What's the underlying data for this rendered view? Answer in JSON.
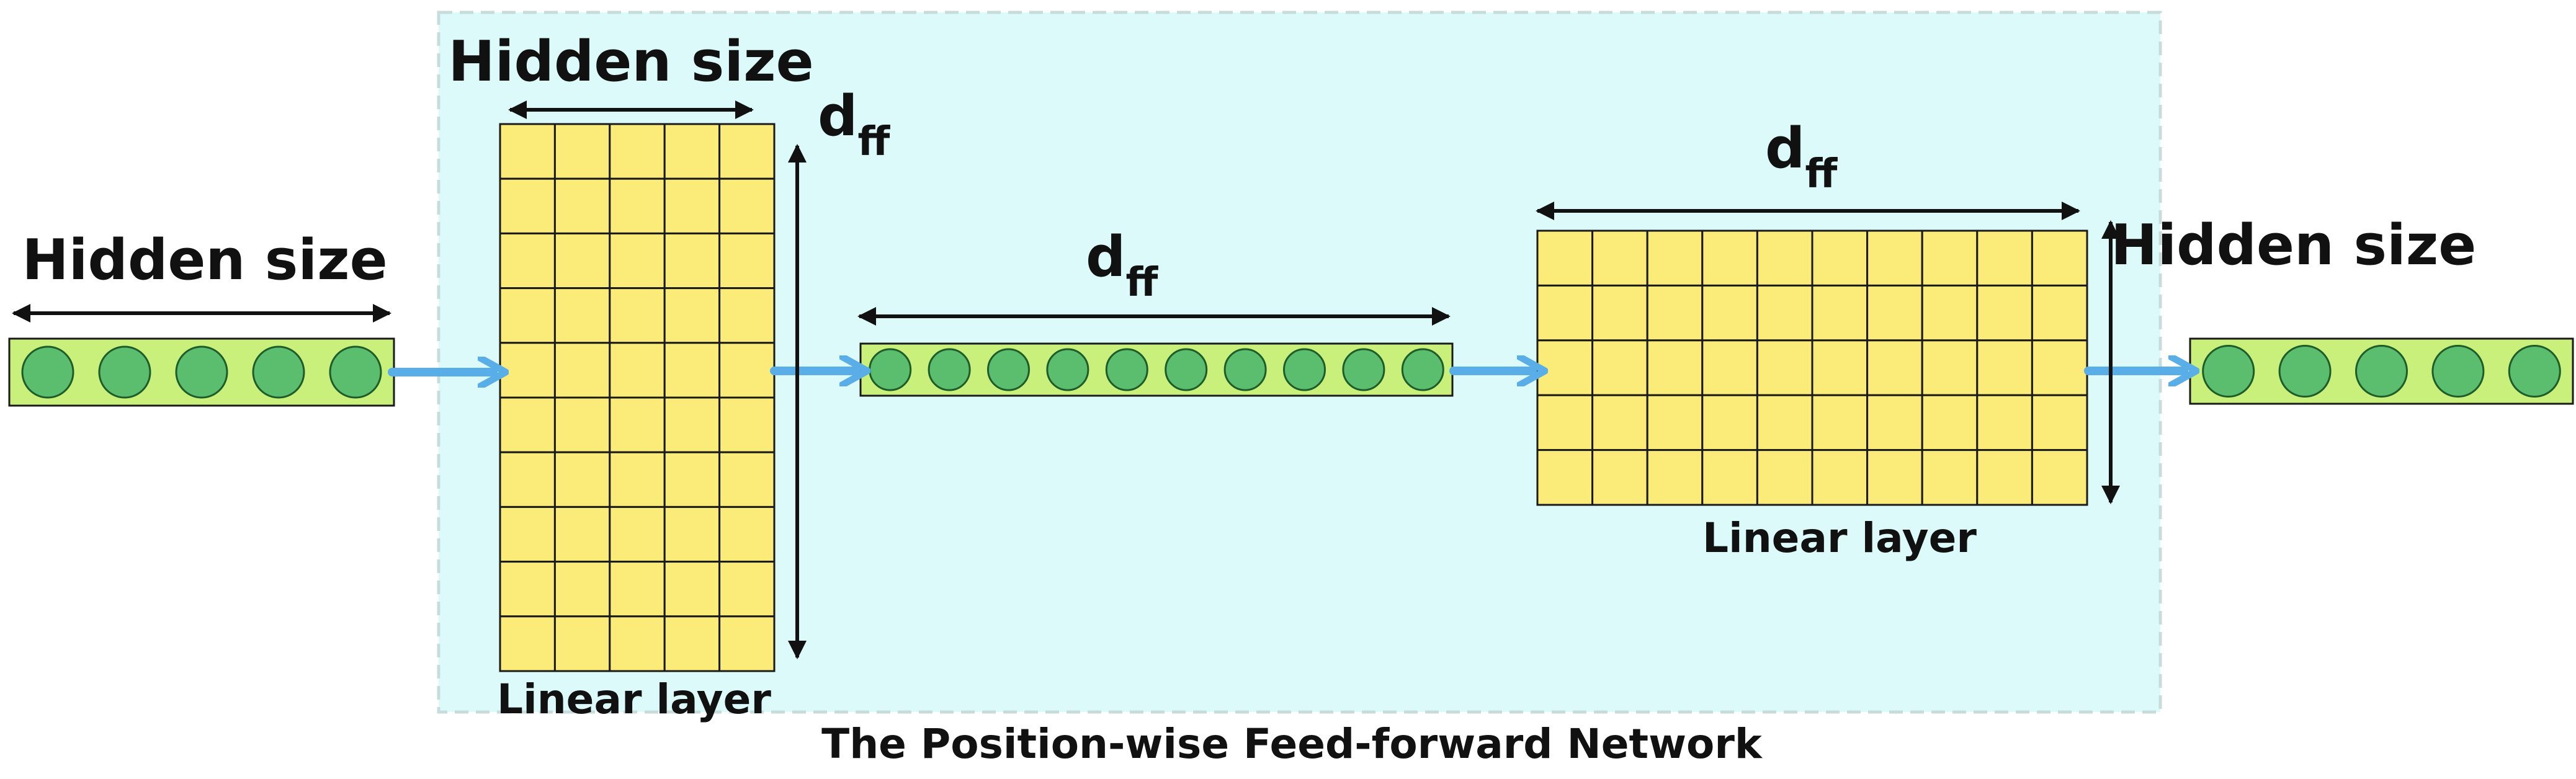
{
  "labels": {
    "hidden_size_input": "Hidden size",
    "hidden_size_layer1": "Hidden size",
    "dff_main": "d",
    "dff_sub": "ff",
    "hidden_size_output": "Hidden size",
    "linear_layer": "Linear layer",
    "caption": "The Position-wise Feed-forward Network"
  },
  "structure": {
    "input_vector_units": 5,
    "layer1_grid": {
      "rows": 10,
      "cols": 5
    },
    "hidden_vector_units": 10,
    "layer2_grid": {
      "rows": 5,
      "cols": 10
    },
    "output_vector_units": 5
  },
  "colors": {
    "module_background": "#dcfafa",
    "module_border": "#c9dcdc",
    "vector_fill": "#c9f07a",
    "unit_fill": "#5bbd6e",
    "unit_stroke": "#1e5c2a",
    "cell_fill": "#fbec7a",
    "grid_stroke": "#1a1a1a",
    "flow_arrow": "#5aaee8",
    "dimension_arrow": "#111111"
  }
}
